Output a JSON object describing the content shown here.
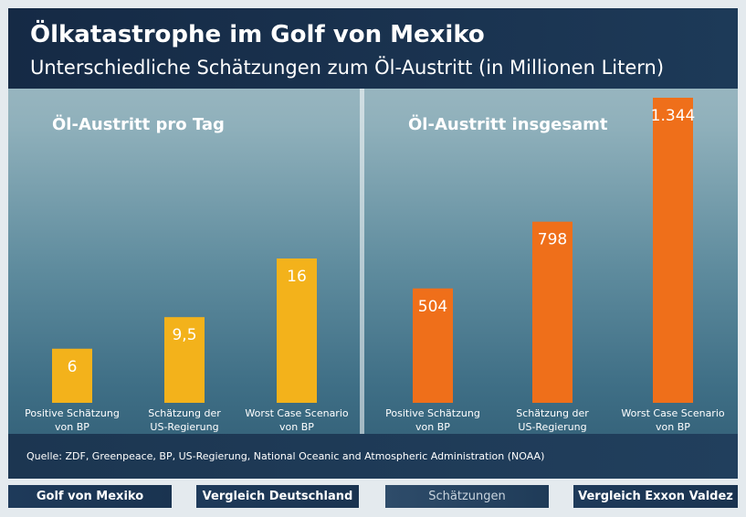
{
  "header": {
    "title": "Ölkatastrophe im Golf von Mexiko",
    "subtitle": "Unterschiedliche Schätzungen zum Öl-Austritt (in Millionen Litern)"
  },
  "source": "Quelle: ZDF, Greenpeace, BP, US-Regierung, National Oceanic and Atmospheric Administration (NOAA)",
  "nav": {
    "tabs": [
      {
        "label": "Golf von Mexiko"
      },
      {
        "label": "Vergleich Deutschland"
      },
      {
        "label": "Schätzungen",
        "active": true
      },
      {
        "label": "Vergleich Exxon Valdez"
      }
    ]
  },
  "chart_data": [
    {
      "type": "bar",
      "title": "Öl-Austritt pro Tag",
      "categories": [
        "Positive Schätzung von BP",
        "Schätzung der US-Regierung",
        "Worst Case Scenario von BP"
      ],
      "category_lines": [
        [
          "Positive Schätzung",
          "von BP"
        ],
        [
          "Schätzung der",
          "US-Regierung"
        ],
        [
          "Worst Case Scenario",
          "von BP"
        ]
      ],
      "values": [
        6,
        9.5,
        16
      ],
      "value_labels": [
        "6",
        "9,5",
        "16"
      ],
      "color": "#f3b21b",
      "ylim": [
        0,
        16
      ],
      "grid": false
    },
    {
      "type": "bar",
      "title": "Öl-Austritt insgesamt",
      "categories": [
        "Positive Schätzung von BP",
        "Schätzung der US-Regierung",
        "Worst Case Scenario von BP"
      ],
      "category_lines": [
        [
          "Positive Schätzung",
          "von BP"
        ],
        [
          "Schätzung der",
          "US-Regierung"
        ],
        [
          "Worst Case Scenario",
          "von BP"
        ]
      ],
      "values": [
        504,
        798,
        1344
      ],
      "value_labels": [
        "504",
        "798",
        "1.344"
      ],
      "color": "#ef6f1a",
      "ylim": [
        0,
        1344
      ],
      "grid": false
    }
  ]
}
